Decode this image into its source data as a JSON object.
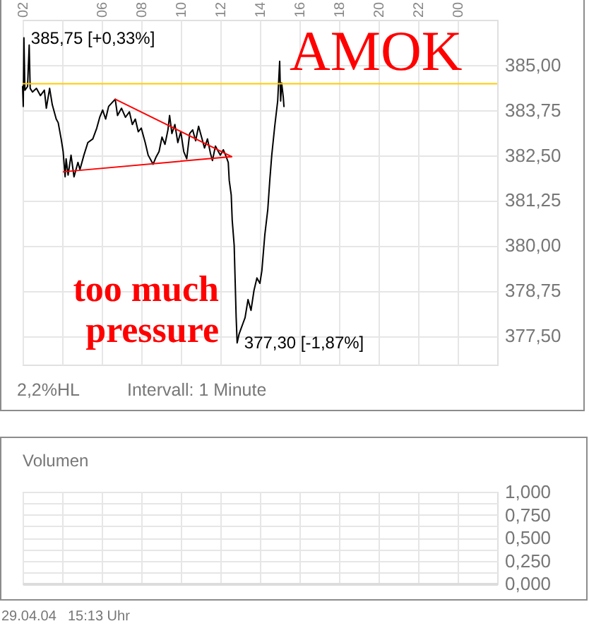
{
  "chart_data": [
    {
      "type": "line",
      "series": [
        {
          "color": "#000000",
          "x": [
            "--04-29T02:00",
            "--04-29T02:02",
            "--04-29T02:04",
            "--04-29T02:07",
            "--04-29T02:15",
            "--04-29T02:20",
            "--04-29T02:23",
            "--04-29T02:30",
            "--04-29T02:42",
            "--04-29T02:54",
            "--04-29T03:06",
            "--04-29T03:12",
            "--04-29T03:22",
            "--04-29T03:30",
            "--04-29T03:42",
            "--04-29T03:48",
            "--04-29T03:57",
            "--04-29T04:03",
            "--04-29T04:09",
            "--04-29T04:12",
            "--04-29T04:18",
            "--04-29T04:27",
            "--04-29T04:36",
            "--04-29T04:48",
            "--04-29T04:54",
            "--04-29T05:06",
            "--04-29T05:18",
            "--04-29T05:33",
            "--04-29T05:45",
            "--04-29T05:54",
            "--04-29T06:03",
            "--04-29T06:12",
            "--04-29T06:21",
            "--04-29T06:41",
            "--04-29T06:48",
            "--04-29T07:00",
            "--04-29T07:12",
            "--04-29T07:24",
            "--04-29T07:33",
            "--04-29T07:42",
            "--04-29T07:51",
            "--04-29T08:00",
            "--04-29T08:12",
            "--04-29T08:21",
            "--04-29T08:30",
            "--04-29T08:36",
            "--04-29T08:45",
            "--04-29T08:54",
            "--04-29T09:03",
            "--04-29T09:12",
            "--04-29T09:21",
            "--04-29T09:26",
            "--04-29T09:33",
            "--04-29T09:42",
            "--04-29T09:51",
            "--04-29T10:00",
            "--04-29T10:09",
            "--04-29T10:18",
            "--04-29T10:27",
            "--04-29T10:36",
            "--04-29T10:45",
            "--04-29T10:54",
            "--04-29T11:03",
            "--04-29T11:12",
            "--04-29T11:21",
            "--04-29T11:30",
            "--04-29T11:36",
            "--04-29T11:45",
            "--04-29T11:54",
            "--04-29T12:00",
            "--04-29T12:09",
            "--04-29T12:18",
            "--04-29T12:24",
            "--04-29T12:27",
            "--04-29T12:33",
            "--04-29T12:36",
            "--04-29T12:42",
            "--04-29T12:45",
            "--04-29T12:48",
            "--04-29T12:51",
            "--04-29T12:57",
            "--04-29T13:03",
            "--04-29T13:09",
            "--04-29T13:15",
            "--04-29T13:24",
            "--04-29T13:33",
            "--04-29T13:42",
            "--04-29T13:51",
            "--04-29T14:00",
            "--04-29T14:06",
            "--04-29T14:15",
            "--04-29T14:24",
            "--04-29T14:30",
            "--04-29T14:36",
            "--04-29T14:45",
            "--04-29T14:54",
            "--04-29T15:00",
            "--04-29T15:03",
            "--04-29T15:06",
            "--04-29T15:11",
            "--04-29T15:13"
          ],
          "values": [
            384.4,
            383.85,
            385.75,
            384.3,
            384.4,
            385.55,
            384.35,
            384.25,
            384.35,
            384.15,
            384.3,
            383.8,
            384.35,
            383.9,
            383.5,
            383.4,
            382.95,
            382.6,
            381.9,
            382.4,
            381.95,
            382.5,
            381.9,
            382.3,
            382.1,
            382.5,
            382.85,
            382.95,
            383.25,
            383.55,
            383.75,
            383.5,
            383.85,
            384.05,
            383.6,
            383.8,
            383.55,
            383.7,
            383.35,
            383.5,
            383.15,
            383.25,
            382.85,
            382.5,
            382.35,
            382.25,
            382.45,
            382.6,
            383.0,
            382.8,
            383.2,
            383.6,
            383.1,
            383.35,
            382.85,
            383.15,
            382.6,
            382.4,
            383.1,
            383.2,
            382.9,
            383.3,
            383.0,
            382.7,
            382.95,
            382.55,
            382.35,
            382.75,
            382.6,
            382.5,
            382.65,
            382.45,
            382.3,
            381.8,
            381.4,
            380.7,
            380.0,
            379.0,
            378.0,
            377.3,
            377.55,
            377.7,
            377.85,
            378.0,
            378.5,
            378.2,
            378.75,
            379.1,
            378.95,
            379.3,
            380.3,
            381.0,
            381.8,
            382.5,
            383.3,
            384.0,
            385.1,
            384.0,
            384.5,
            384.1,
            383.85
          ]
        },
        {
          "type": "line",
          "color": "#ff0000",
          "x": [
            "--04-29T06:41",
            "--04-29T12:34"
          ],
          "values": [
            384.05,
            382.46
          ]
        },
        {
          "type": "line",
          "color": "#ff0000",
          "x": [
            "--04-29T04:04",
            "--04-29T12:34"
          ],
          "values": [
            382.04,
            382.46
          ]
        }
      ],
      "xlim": [
        "--04-29T02:00",
        "--04-30T02:00"
      ],
      "xticks": [
        {
          "value": "--04-29T02:00",
          "label": "02"
        },
        {
          "value": "--04-29T04:00",
          "label": null
        },
        {
          "value": "--04-29T06:00",
          "label": "06"
        },
        {
          "value": "--04-29T08:00",
          "label": "08"
        },
        {
          "value": "--04-29T10:00",
          "label": "10"
        },
        {
          "value": "--04-29T12:00",
          "label": "12"
        },
        {
          "value": "--04-29T14:00",
          "label": "14"
        },
        {
          "value": "--04-29T16:00",
          "label": "16"
        },
        {
          "value": "--04-29T18:00",
          "label": "18"
        },
        {
          "value": "--04-29T20:00",
          "label": "20"
        },
        {
          "value": "--04-29T22:00",
          "label": "22"
        },
        {
          "value": "--04-30T00:00",
          "label": "00"
        }
      ],
      "ylim": [
        376.7,
        386.25
      ],
      "yticks": [
        {
          "value": 377.5,
          "label": "377,50"
        },
        {
          "value": 378.75,
          "label": "378,75"
        },
        {
          "value": 380,
          "label": "380,00"
        },
        {
          "value": 381.25,
          "label": "381,25"
        },
        {
          "value": 382.5,
          "label": "382,50"
        },
        {
          "value": 383.75,
          "label": "383,75"
        },
        {
          "value": 385,
          "label": "385,00"
        }
      ],
      "grid": true,
      "ref_lines": [
        {
          "axis": "y",
          "value": 384.48,
          "color": "#ffcc00"
        }
      ],
      "annotations": [
        {
          "text": "385,75 [+0,33%]",
          "x": "--04-29T02:04",
          "y": 385.75
        },
        {
          "text": "377,30 [-1,87%]",
          "x": "--04-29T12:51",
          "y": 377.3
        },
        "AMOK",
        "too much\npressure",
        "2,2%HL",
        "Intervall: 1 Minute"
      ]
    },
    {
      "type": "bar",
      "title": "Volumen",
      "xlim": [
        "--04-29T02:00",
        "--04-30T02:00"
      ],
      "xticks": [
        "--04-29T02:00",
        "--04-29T04:00",
        "--04-29T06:00",
        "--04-29T08:00",
        "--04-29T10:00",
        "--04-29T12:00",
        "--04-29T14:00",
        "--04-29T16:00",
        "--04-29T18:00",
        "--04-29T20:00",
        "--04-29T22:00",
        "--04-30T00:00"
      ],
      "ylim": [
        0,
        1
      ],
      "yticks": [
        {
          "value": 0,
          "label": "0,000"
        },
        {
          "value": 0.125,
          "label": null
        },
        {
          "value": 0.25,
          "label": "0,250"
        },
        {
          "value": 0.375,
          "label": null
        },
        {
          "value": 0.5,
          "label": "0,500"
        },
        {
          "value": 0.625,
          "label": null
        },
        {
          "value": 0.75,
          "label": "0,750"
        },
        {
          "value": 0.875,
          "label": null
        },
        {
          "value": 1,
          "label": "1,000"
        }
      ],
      "grid": true,
      "tick_labels": "y",
      "annotations": [
        "29.04.04",
        "15:13 Uhr"
      ]
    }
  ]
}
